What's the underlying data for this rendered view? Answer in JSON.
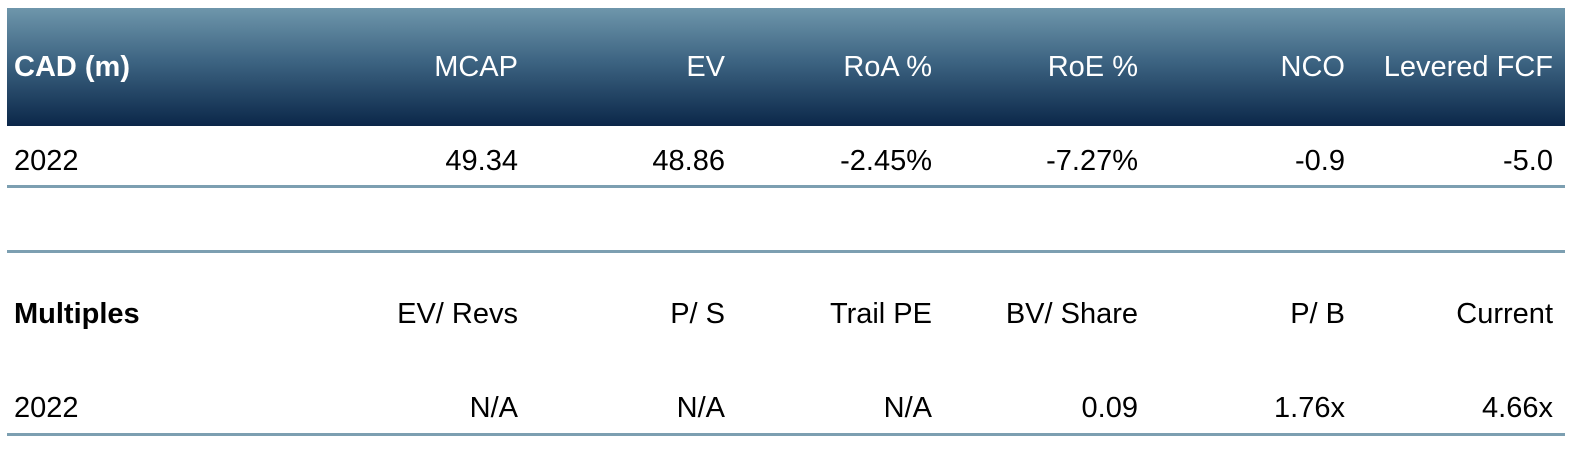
{
  "summary": {
    "header": [
      "CAD (m)",
      "MCAP",
      "EV",
      "RoA %",
      "RoE %",
      "NCO",
      "Levered FCF"
    ],
    "rows": [
      [
        "2022",
        "49.34",
        "48.86",
        "-2.45%",
        "-7.27%",
        "-0.9",
        "-5.0"
      ]
    ]
  },
  "multiples": {
    "header": [
      "Multiples",
      "EV/ Revs",
      "P/ S",
      "Trail PE",
      "BV/ Share",
      "P/ B",
      "Current"
    ],
    "rows": [
      [
        "2022",
        "N/A",
        "N/A",
        "N/A",
        "0.09",
        "1.76x",
        "4.66x"
      ]
    ]
  }
}
